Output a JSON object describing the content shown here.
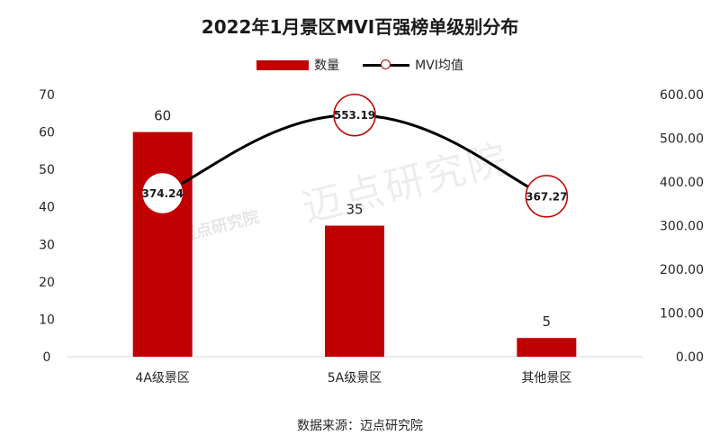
{
  "watermark": "迈点研究院",
  "source": "数据来源：迈点研究院",
  "chart_data": {
    "type": "bar",
    "title": "2022年1月景区MVI百强榜单级别分布",
    "categories": [
      "4A级景区",
      "5A级景区",
      "其他景区"
    ],
    "series": [
      {
        "name": "数量",
        "type": "bar",
        "axis": "left",
        "values": [
          60,
          35,
          5
        ],
        "labels": [
          "60",
          "35",
          "5"
        ],
        "color": "#c00000"
      },
      {
        "name": "MVI均值",
        "type": "line",
        "axis": "right",
        "values": [
          374.24,
          553.19,
          367.27
        ],
        "labels": [
          "374.24",
          "553.19",
          "367.27"
        ],
        "color": "#000000",
        "marker_color": "#c00000"
      }
    ],
    "y_left": {
      "min": 0,
      "max": 70,
      "step": 10,
      "ticks": [
        "0",
        "10",
        "20",
        "30",
        "40",
        "50",
        "60",
        "70"
      ]
    },
    "y_right": {
      "min": 0,
      "max": 600,
      "step": 100,
      "ticks": [
        "0.00",
        "100.00",
        "200.00",
        "300.00",
        "400.00",
        "500.00",
        "600.00"
      ]
    },
    "grid": false,
    "legend_position": "top-center"
  }
}
